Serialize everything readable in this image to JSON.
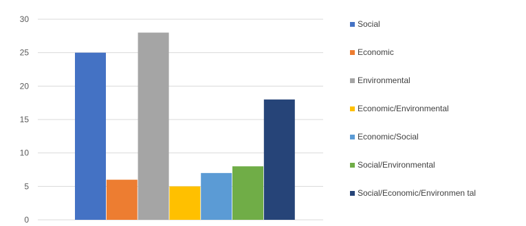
{
  "chart_data": {
    "type": "bar",
    "categories": [
      "Social",
      "Economic",
      "Environmental",
      "Economic/Environmental",
      "Economic/Social",
      "Social/Environmental",
      "Social/Economic/Environmental"
    ],
    "values": [
      25,
      6,
      28,
      5,
      7,
      8,
      18
    ],
    "colors": [
      "#4472C4",
      "#ED7D31",
      "#A5A5A5",
      "#FFC000",
      "#5B9BD5",
      "#70AD47",
      "#264478"
    ],
    "ylim": [
      0,
      30
    ],
    "yticks": [
      0,
      5,
      10,
      15,
      20,
      25,
      30
    ],
    "grid": true,
    "legend_position": "right",
    "title": "",
    "xlabel": "",
    "ylabel": ""
  },
  "legend": {
    "items": [
      {
        "label": "Social"
      },
      {
        "label": "Economic"
      },
      {
        "label": "Environmental"
      },
      {
        "label": "Economic/Environmental"
      },
      {
        "label": "Economic/Social"
      },
      {
        "label": "Social/Environmental"
      },
      {
        "label": "Social/Economic/Environmen tal"
      }
    ]
  }
}
